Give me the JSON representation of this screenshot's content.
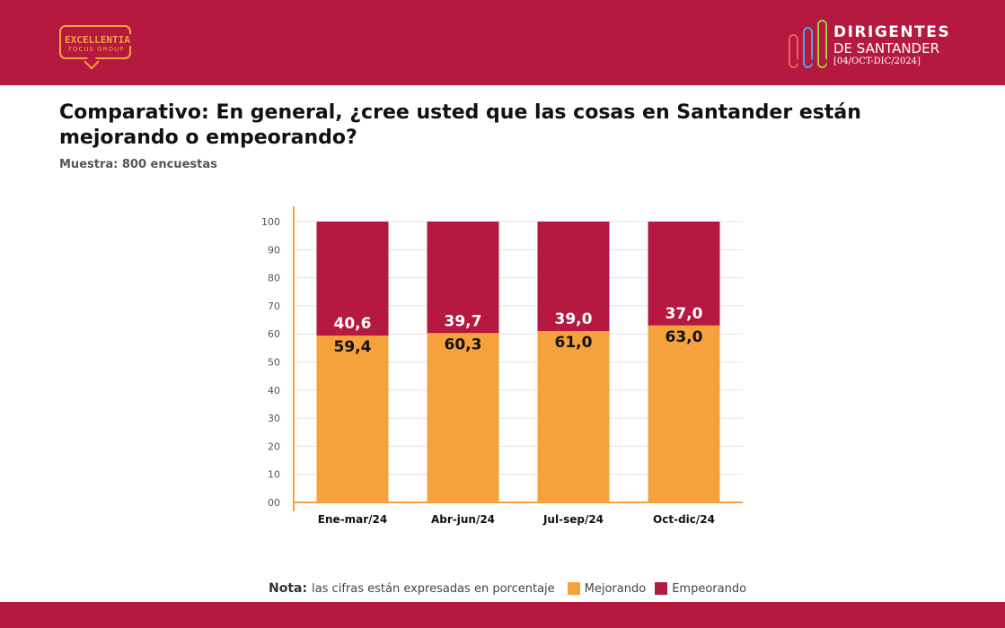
{
  "header": {
    "logo_left": {
      "line1": "EXCELLENTIA",
      "line2": "FOCUS GROUP"
    },
    "logo_right": {
      "line1": "DIRIGENTES",
      "line2": "DE SANTANDER",
      "line3": "[04/OCT-DIC/2024]",
      "pill_colors": [
        "#f05a5f",
        "#4aa8df",
        "#9ccc3c"
      ]
    },
    "background_color": "#b5193f"
  },
  "title": "Comparativo: En general, ¿cree usted que las cosas en Santander están mejorando o empeorando?",
  "subtitle": "Muestra: 800 encuestas",
  "note": {
    "label": "Nota:",
    "text": "las cifras están expresadas en porcentaje"
  },
  "chart_data": {
    "type": "bar",
    "stacked": true,
    "categories": [
      "Ene-mar/24",
      "Abr-jun/24",
      "Jul-sep/24",
      "Oct-dic/24"
    ],
    "series": [
      {
        "name": "Mejorando",
        "values": [
          59.4,
          60.3,
          61.0,
          63.0
        ],
        "labels": [
          "59,4",
          "60,3",
          "61,0",
          "63,0"
        ],
        "color": "#f6a23c"
      },
      {
        "name": "Empeorando",
        "values": [
          40.6,
          39.7,
          39.0,
          37.0
        ],
        "labels": [
          "40,6",
          "39,7",
          "39,0",
          "37,0"
        ],
        "color": "#b5193f"
      }
    ],
    "ylim": [
      0,
      100
    ],
    "yticks": [
      "00",
      "10",
      "20",
      "30",
      "40",
      "50",
      "60",
      "70",
      "80",
      "90",
      "100"
    ],
    "grid": true,
    "legend": "bottom",
    "axis_color": "#f6a23c"
  },
  "footer": {
    "background_color": "#b5193f"
  }
}
